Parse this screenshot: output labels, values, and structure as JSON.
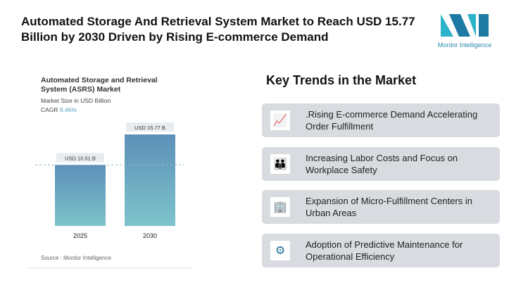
{
  "title": "Automated Storage And Retrieval System Market to Reach USD 15.77 Billion by 2030 Driven by Rising E-commerce Demand",
  "logo": {
    "text": "Mordor Intelligence"
  },
  "card": {
    "title": "Automated Storage and Retrieval System (ASRS) Market",
    "subtitle": "Market Size in USD Billion",
    "cagr_label": "CAGR",
    "cagr_value": "8.46%",
    "source": "Source :  Mordor Intelligence"
  },
  "chart_data": {
    "type": "bar",
    "categories": [
      "2025",
      "2030"
    ],
    "values": [
      10.51,
      15.77
    ],
    "data_labels": [
      "USD 10.51 B",
      "USD 15.77 B"
    ],
    "title": "Automated Storage and Retrieval System (ASRS) Market",
    "ylabel": "Market Size in USD Billion"
  },
  "key_trends": {
    "heading": "Key Trends in the Market",
    "items": [
      {
        "icon": "line-chart-icon",
        "text": ".Rising E-commerce Demand Accelerating Order Fulfillment"
      },
      {
        "icon": "people-icon",
        "text": "Increasing Labor Costs and Focus on Workplace Safety"
      },
      {
        "icon": "buildings-icon",
        "text": "Expansion of Micro-Fulfillment Centers in Urban Areas"
      },
      {
        "icon": "gears-icon",
        "text": "Adoption of Predictive Maintenance for Operational Efficiency"
      }
    ]
  }
}
